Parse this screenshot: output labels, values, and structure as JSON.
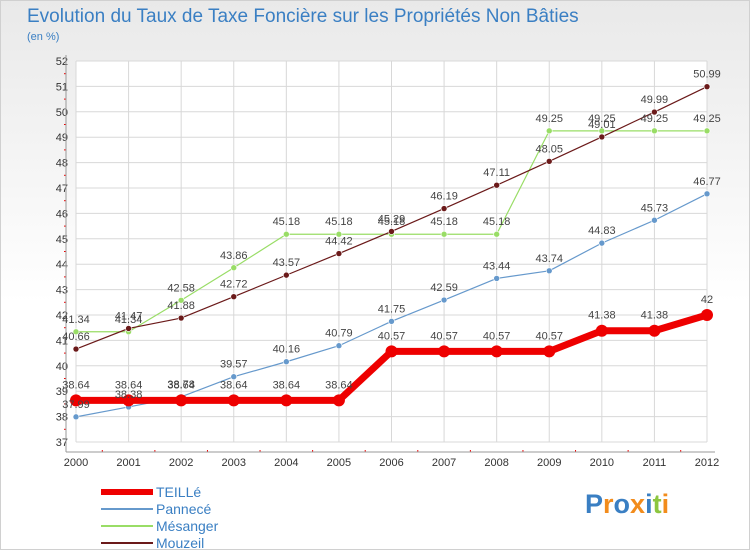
{
  "chart_data": {
    "type": "line",
    "title": "Evolution du Taux de Taxe Foncière sur les Propriétés Non Bâties",
    "subtitle": "(en %)",
    "xlabel": "",
    "ylabel": "",
    "categories": [
      "2000",
      "2001",
      "2002",
      "2003",
      "2004",
      "2005",
      "2006",
      "2007",
      "2008",
      "2009",
      "2010",
      "2011",
      "2012"
    ],
    "ylim": [
      37,
      52
    ],
    "yticks": [
      "37",
      "38",
      "39",
      "40",
      "41",
      "42",
      "43",
      "44",
      "45",
      "46",
      "47",
      "48",
      "49",
      "50",
      "51",
      "52"
    ],
    "grid": true,
    "legend_position": "bottom-left",
    "series": [
      {
        "name": "Mésanger",
        "color": "#99dd66",
        "values": [
          41.34,
          41.34,
          42.58,
          43.86,
          45.18,
          45.18,
          45.18,
          45.18,
          45.18,
          49.25,
          49.25,
          49.25,
          49.25
        ],
        "labels": [
          "41.34",
          "41.34",
          "42.58",
          "43.86",
          "45.18",
          "45.18",
          "45.18",
          "45.18",
          "45.18",
          "49.25",
          "49.25",
          "49.25",
          "49.25"
        ]
      },
      {
        "name": "Mouzeil",
        "color": "#6b1a1a",
        "values": [
          40.66,
          41.47,
          41.88,
          42.72,
          43.57,
          44.42,
          45.29,
          46.19,
          47.11,
          48.05,
          49.01,
          49.99,
          50.99
        ],
        "labels": [
          "40.66",
          "41.47",
          "41.88",
          "42.72",
          "43.57",
          "44.42",
          "45.29",
          "46.19",
          "47.11",
          "48.05",
          "49.01",
          "49.99",
          "50.99"
        ]
      },
      {
        "name": "Pannecé",
        "color": "#6699cc",
        "values": [
          37.99,
          38.38,
          38.78,
          39.57,
          40.16,
          40.79,
          41.75,
          42.59,
          43.44,
          43.74,
          44.83,
          45.73,
          46.77
        ],
        "labels": [
          "37.99",
          "38.38",
          "38.78",
          "39.57",
          "40.16",
          "40.79",
          "41.75",
          "42.59",
          "43.44",
          "43.74",
          "44.83",
          "45.73",
          "46.77"
        ]
      },
      {
        "name": "TEILLé",
        "color": "#ee0000",
        "values": [
          38.64,
          38.64,
          38.64,
          38.64,
          38.64,
          38.64,
          40.57,
          40.57,
          40.57,
          40.57,
          41.38,
          41.38,
          42
        ],
        "labels": [
          "38.64",
          "38.64",
          "38.64",
          "38.64",
          "38.64",
          "38.64",
          "40.57",
          "40.57",
          "40.57",
          "40.57",
          "41.38",
          "41.38",
          "42"
        ]
      }
    ],
    "legend": [
      "TEILLé",
      "Pannecé",
      "Mésanger",
      "Mouzeil"
    ]
  },
  "colors": {
    "title": "#3a7fc3",
    "grid": "#d8d8d8",
    "axis": "#999999",
    "tick_text": "#333333",
    "value_label": "#444444"
  },
  "brand": {
    "text": "Proxiti",
    "letters": [
      {
        "ch": "P",
        "color": "#3a7fc3"
      },
      {
        "ch": "r",
        "color": "#f28c1c"
      },
      {
        "ch": "o",
        "color": "#3a7fc3"
      },
      {
        "ch": "x",
        "color": "#f28c1c"
      },
      {
        "ch": "i",
        "color": "#3a7fc3"
      },
      {
        "ch": "t",
        "color": "#8cc63f"
      },
      {
        "ch": "i",
        "color": "#f28c1c"
      }
    ]
  }
}
